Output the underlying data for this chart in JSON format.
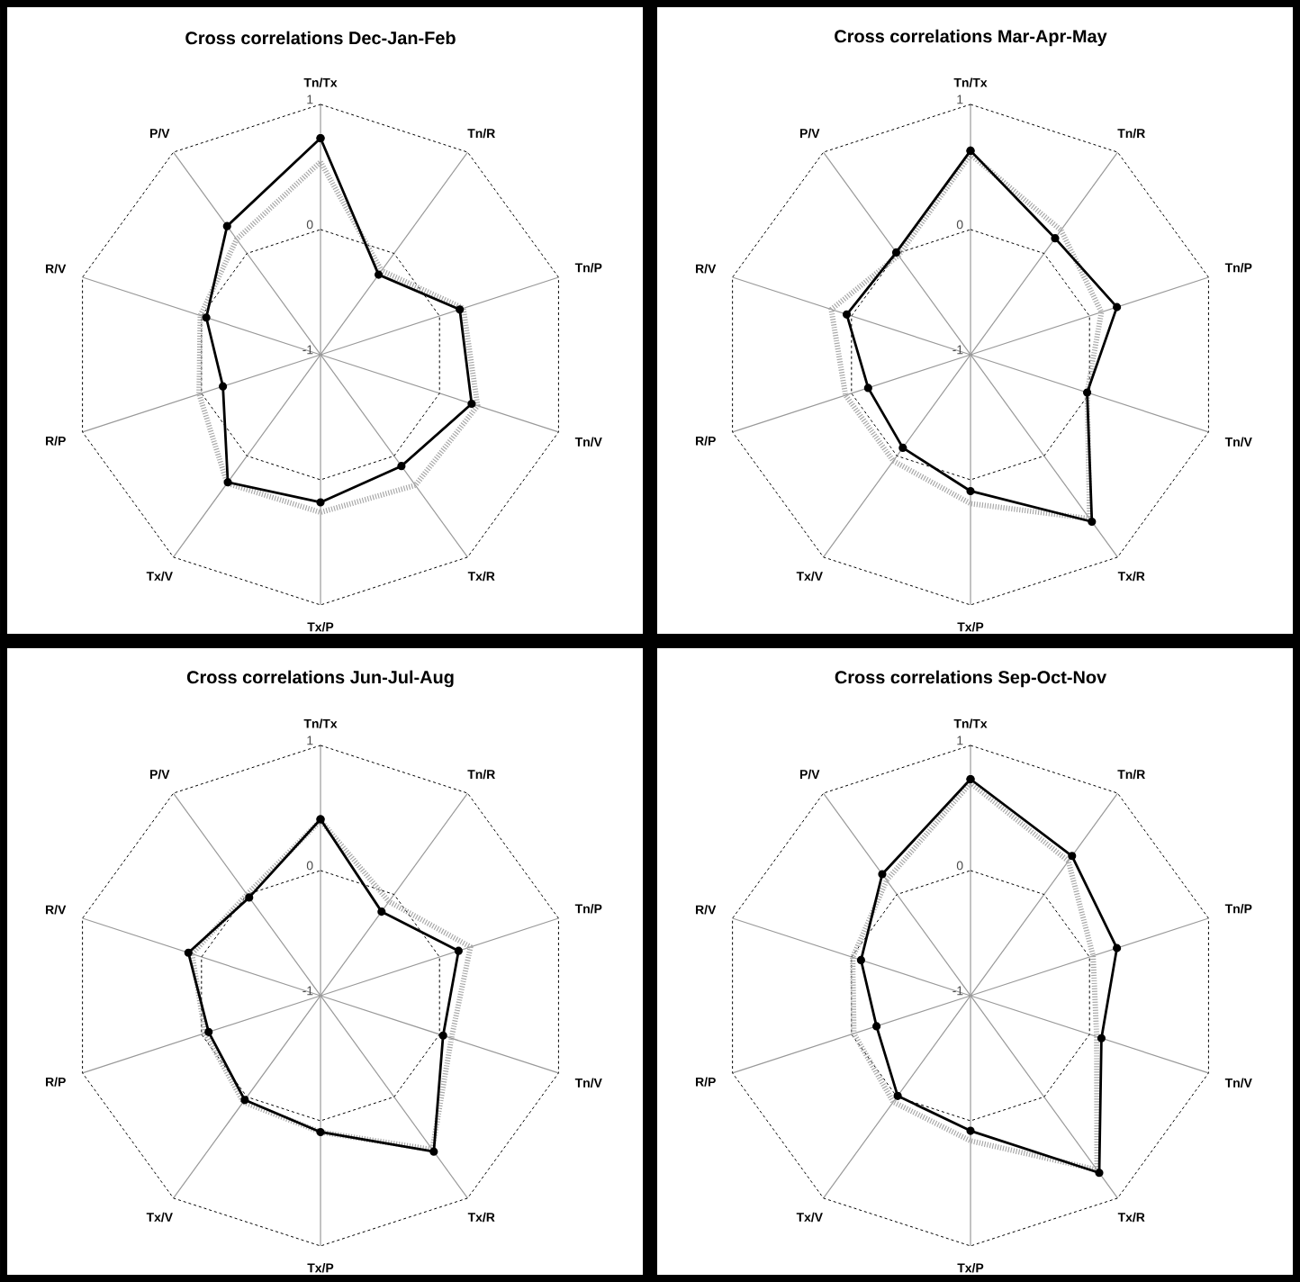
{
  "chart_data": [
    {
      "type": "radar",
      "title": "Cross correlations Dec-Jan-Feb",
      "categories": [
        "Tn/Tx",
        "Tn/R",
        "Tn/P",
        "Tn/V",
        "Tx/R",
        "Tx/P",
        "Tx/V",
        "R/P",
        "R/V",
        "P/V"
      ],
      "ylim": [
        -1,
        1
      ],
      "yticks": [
        -1,
        0,
        1
      ],
      "grid": true,
      "series": [
        {
          "color": "#a8a8a8",
          "line_style": "dotted",
          "marker": "none",
          "values": [
            0.54,
            -0.17,
            0.2,
            0.32,
            0.29,
            0.26,
            0.27,
            0.02,
            0.01,
            0.14
          ]
        },
        {
          "color": "#000000",
          "line_style": "solid",
          "marker": "circle",
          "values": [
            0.73,
            -0.21,
            0.17,
            0.27,
            0.1,
            0.18,
            0.26,
            -0.18,
            -0.04,
            0.27
          ]
        }
      ]
    },
    {
      "type": "radar",
      "title": "Cross correlations Mar-Apr-May",
      "categories": [
        "Tn/Tx",
        "Tn/R",
        "Tn/P",
        "Tn/V",
        "Tx/R",
        "Tx/P",
        "Tx/V",
        "R/P",
        "R/V",
        "P/V"
      ],
      "ylim": [
        -1,
        1
      ],
      "yticks": [
        -1,
        0,
        1
      ],
      "grid": true,
      "series": [
        {
          "color": "#a8a8a8",
          "line_style": "dotted",
          "marker": "none",
          "values": [
            0.6,
            0.23,
            0.1,
            -0.02,
            0.62,
            0.19,
            0.05,
            0.05,
            0.17,
            -0.02
          ]
        },
        {
          "color": "#000000",
          "line_style": "solid",
          "marker": "circle",
          "values": [
            0.63,
            0.15,
            0.23,
            -0.02,
            0.65,
            0.09,
            -0.08,
            -0.14,
            0.04,
            0.01
          ]
        }
      ]
    },
    {
      "type": "radar",
      "title": "Cross correlations Jun-Jul-Aug",
      "categories": [
        "Tn/Tx",
        "Tn/R",
        "Tn/P",
        "Tn/V",
        "Tx/R",
        "Tx/P",
        "Tx/V",
        "R/P",
        "R/V",
        "P/V"
      ],
      "ylim": [
        -1,
        1
      ],
      "yticks": [
        -1,
        0,
        1
      ],
      "grid": true,
      "series": [
        {
          "color": "#a8a8a8",
          "line_style": "dotted",
          "marker": "none",
          "values": [
            0.4,
            -0.07,
            0.26,
            0.1,
            0.52,
            0.09,
            0.05,
            -0.03,
            0.08,
            0.0
          ]
        },
        {
          "color": "#000000",
          "line_style": "solid",
          "marker": "circle",
          "values": [
            0.41,
            -0.17,
            0.16,
            0.03,
            0.54,
            0.09,
            0.03,
            -0.06,
            0.11,
            -0.03
          ]
        }
      ]
    },
    {
      "type": "radar",
      "title": "Cross correlations Sep-Oct-Nov",
      "categories": [
        "Tn/Tx",
        "Tn/R",
        "Tn/P",
        "Tn/V",
        "Tx/R",
        "Tx/P",
        "Tx/V",
        "R/P",
        "R/V",
        "P/V"
      ],
      "ylim": [
        -1,
        1
      ],
      "yticks": [
        -1,
        0,
        1
      ],
      "grid": true,
      "series": [
        {
          "color": "#a8a8a8",
          "line_style": "dotted",
          "marker": "none",
          "values": [
            0.7,
            0.33,
            0.03,
            0.06,
            0.72,
            0.16,
            0.05,
            -0.02,
            -0.01,
            0.14
          ]
        },
        {
          "color": "#000000",
          "line_style": "solid",
          "marker": "circle",
          "values": [
            0.73,
            0.38,
            0.23,
            0.1,
            0.75,
            0.08,
            -0.01,
            -0.21,
            -0.08,
            0.2
          ]
        }
      ]
    }
  ]
}
